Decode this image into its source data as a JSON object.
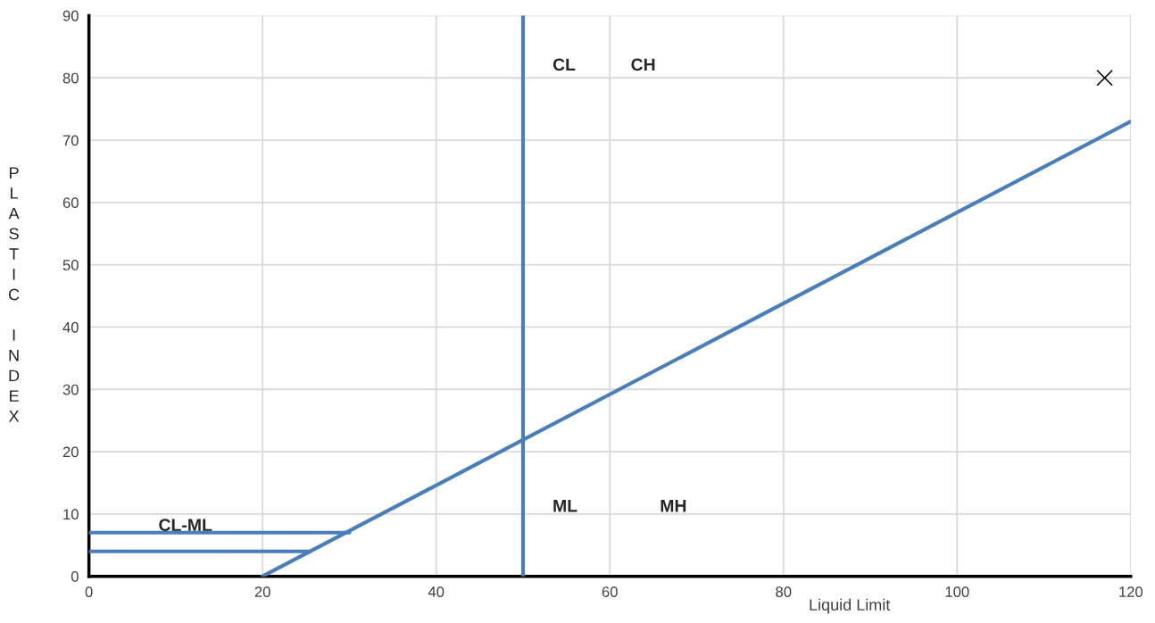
{
  "chart_data": {
    "type": "line",
    "xlabel": "Liquid Limit",
    "ylabel": "PLASTIC INDEX",
    "xlim": [
      0,
      120
    ],
    "xticks": [
      0,
      20,
      40,
      60,
      80,
      100,
      120
    ],
    "ylim": [
      0,
      90
    ],
    "yticks": [
      0,
      10,
      20,
      30,
      40,
      50,
      60,
      70,
      80,
      90
    ],
    "grid": true,
    "marker": "none",
    "line_style": "solid",
    "series": [
      {
        "color": "#4a7ebb",
        "x": [
          20,
          120
        ],
        "values": [
          0,
          73
        ]
      },
      {
        "color": "#4a7ebb",
        "x": [
          50,
          50
        ],
        "values": [
          0,
          90
        ]
      },
      {
        "color": "#4a7ebb",
        "x": [
          0,
          30
        ],
        "values": [
          7,
          7
        ]
      },
      {
        "color": "#4a7ebb",
        "x": [
          0,
          25.5
        ],
        "values": [
          4,
          4
        ]
      },
      {
        "type": "scatter",
        "color": "#000000",
        "marker": "cross",
        "x": [
          117
        ],
        "values": [
          80
        ]
      }
    ],
    "annotations": [
      "CL",
      "CH",
      "ML",
      "MH",
      {
        "text": "CL-ML",
        "x": 8,
        "y": 8
      }
    ]
  }
}
